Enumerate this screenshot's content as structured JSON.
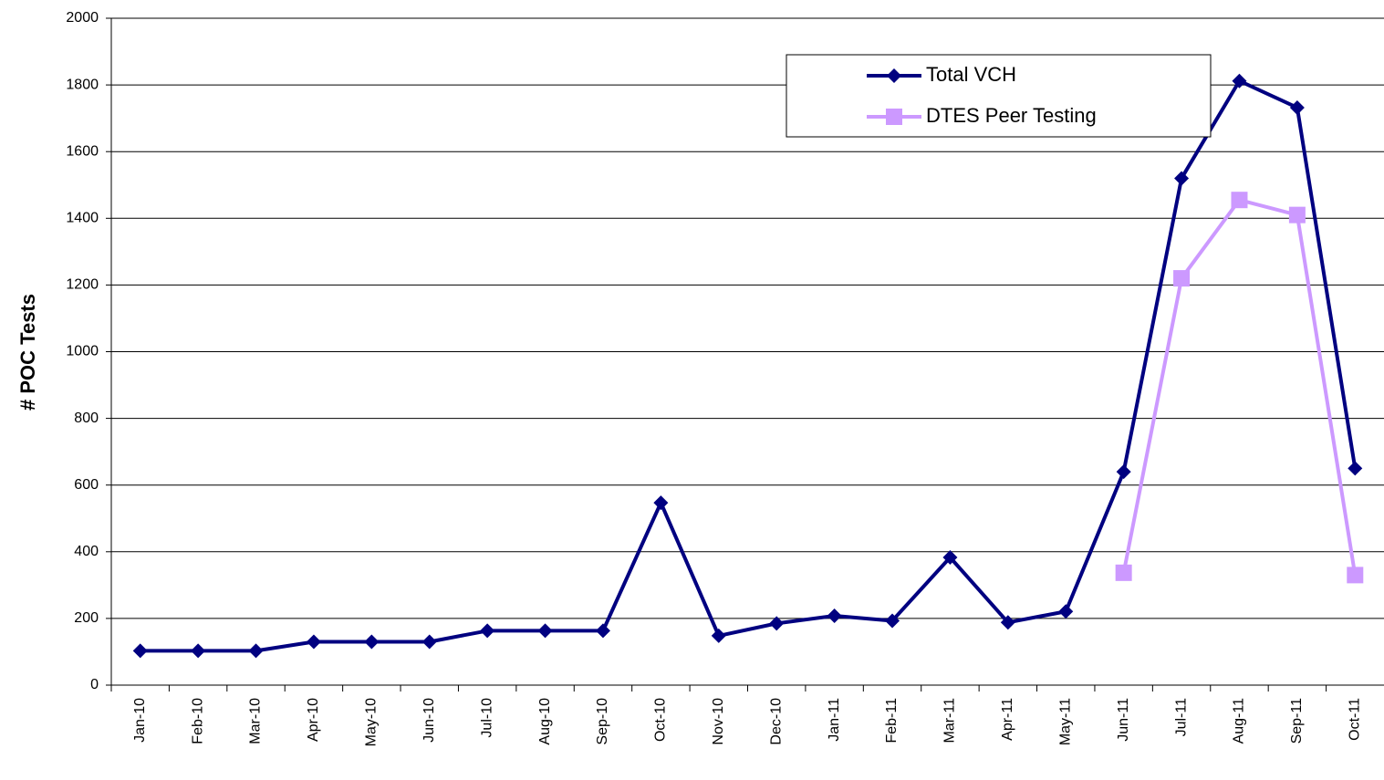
{
  "chart_data": {
    "type": "line",
    "y_label": "# POC Tests",
    "categories": [
      "Jan-10",
      "Feb-10",
      "Mar-10",
      "Apr-10",
      "May-10",
      "Jun-10",
      "Jul-10",
      "Aug-10",
      "Sep-10",
      "Oct-10",
      "Nov-10",
      "Dec-10",
      "Jan-11",
      "Feb-11",
      "Mar-11",
      "Apr-11",
      "May-11",
      "Jun-11",
      "Jul-11",
      "Aug-11",
      "Sep-11",
      "Oct-11"
    ],
    "series": [
      {
        "name": "Total VCH",
        "color": "#000080",
        "marker": "diamond",
        "values": [
          103,
          103,
          103,
          130,
          130,
          130,
          163,
          163,
          163,
          547,
          148,
          185,
          208,
          193,
          383,
          188,
          221,
          640,
          1520,
          1812,
          1732,
          650
        ]
      },
      {
        "name": "DTES Peer Testing",
        "color": "#cc99ff",
        "marker": "square",
        "values": [
          null,
          null,
          null,
          null,
          null,
          null,
          null,
          null,
          null,
          null,
          null,
          null,
          null,
          null,
          null,
          null,
          null,
          337,
          1220,
          1455,
          1410,
          330
        ]
      }
    ],
    "ylim": [
      0,
      2000
    ],
    "yticks": [
      0,
      200,
      400,
      600,
      800,
      1000,
      1200,
      1400,
      1600,
      1800,
      2000
    ],
    "grid": true
  }
}
